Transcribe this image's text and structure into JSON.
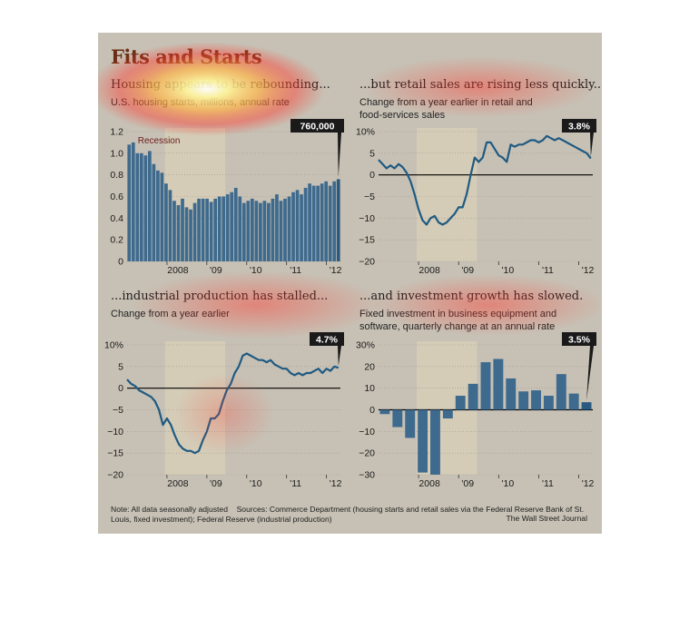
{
  "figure": {
    "title": "Fits and Starts",
    "note": "Note: All data seasonally adjusted",
    "sources": "Sources: Commerce Department (housing starts and retail sales via the Federal Reserve Bank of St. Louis, fixed investment); Federal Reserve (industrial production)",
    "credit": "The Wall Street Journal"
  },
  "colors": {
    "bar": "#3e6a8e",
    "line": "#1f5a82",
    "recession": "#d8cfb8",
    "callout": "#1a1a1a",
    "background": "#c7c1b5"
  },
  "chart_data": [
    {
      "type": "bar",
      "title": "Housing appears to be rebounding...",
      "subtitle": "U.S. housing starts, millions, annual rate",
      "recession_label": "Recession",
      "recession": [
        2007.95,
        2009.46
      ],
      "callout": "760,000",
      "ylim": [
        0,
        1.2
      ],
      "yticks": [
        "0",
        "0.2",
        "0.4",
        "0.6",
        "0.8",
        "1.0",
        "1.2"
      ],
      "xlim": [
        2007.0,
        2012.35
      ],
      "xticks": [
        {
          "label": "2008",
          "x": 2008.0
        },
        {
          "label": "'09",
          "x": 2009.0
        },
        {
          "label": "'10",
          "x": 2010.0
        },
        {
          "label": "'11",
          "x": 2011.0
        },
        {
          "label": "'12",
          "x": 2012.0
        }
      ],
      "values": [
        1.08,
        1.1,
        1.0,
        1.0,
        0.98,
        1.02,
        0.9,
        0.84,
        0.82,
        0.72,
        0.66,
        0.56,
        0.52,
        0.58,
        0.5,
        0.48,
        0.54,
        0.58,
        0.58,
        0.58,
        0.55,
        0.58,
        0.6,
        0.6,
        0.62,
        0.64,
        0.68,
        0.6,
        0.54,
        0.56,
        0.58,
        0.56,
        0.54,
        0.56,
        0.54,
        0.58,
        0.62,
        0.56,
        0.58,
        0.6,
        0.64,
        0.66,
        0.62,
        0.68,
        0.72,
        0.7,
        0.7,
        0.72,
        0.74,
        0.7,
        0.74,
        0.76
      ]
    },
    {
      "type": "line",
      "title": "...but retail sales are rising less quickly...",
      "subtitle": "Change from a year earlier in retail and food-services sales",
      "recession": [
        2007.95,
        2009.46
      ],
      "callout": "3.8%",
      "ylim": [
        -20,
        10
      ],
      "yticks": [
        "−20",
        "−15",
        "−10",
        "−5",
        "0",
        "5",
        "10%"
      ],
      "xlim": [
        2007.0,
        2012.35
      ],
      "xticks": [
        {
          "label": "2008",
          "x": 2008.0
        },
        {
          "label": "'09",
          "x": 2009.0
        },
        {
          "label": "'10",
          "x": 2010.0
        },
        {
          "label": "'11",
          "x": 2011.0
        },
        {
          "label": "'12",
          "x": 2012.0
        }
      ],
      "x": [
        2007.0,
        2007.1,
        2007.2,
        2007.3,
        2007.4,
        2007.5,
        2007.6,
        2007.7,
        2007.8,
        2007.9,
        2008.0,
        2008.1,
        2008.2,
        2008.3,
        2008.4,
        2008.5,
        2008.6,
        2008.7,
        2008.8,
        2008.9,
        2009.0,
        2009.1,
        2009.2,
        2009.3,
        2009.4,
        2009.5,
        2009.6,
        2009.7,
        2009.8,
        2009.9,
        2010.0,
        2010.1,
        2010.2,
        2010.3,
        2010.4,
        2010.5,
        2010.6,
        2010.7,
        2010.8,
        2010.9,
        2011.0,
        2011.1,
        2011.2,
        2011.3,
        2011.4,
        2011.5,
        2011.6,
        2011.7,
        2011.8,
        2011.9,
        2012.0,
        2012.1,
        2012.2,
        2012.3
      ],
      "y": [
        3.5,
        2.5,
        1.5,
        2.2,
        1.5,
        2.5,
        1.8,
        0.5,
        -1.5,
        -4.5,
        -8.0,
        -10.5,
        -11.5,
        -10.0,
        -9.5,
        -11.0,
        -11.5,
        -11.0,
        -10.0,
        -9.0,
        -7.5,
        -7.5,
        -4.5,
        0.0,
        4.0,
        3.0,
        4.0,
        7.5,
        7.5,
        6.0,
        4.5,
        4.0,
        3.0,
        7.0,
        6.5,
        7.0,
        7.0,
        7.5,
        8.0,
        8.0,
        7.5,
        8.0,
        9.0,
        8.5,
        8.0,
        8.5,
        8.0,
        7.5,
        7.0,
        6.5,
        6.0,
        5.5,
        5.0,
        3.8
      ]
    },
    {
      "type": "line",
      "title": "...industrial production has stalled...",
      "subtitle": "Change from a year earlier",
      "recession": [
        2007.95,
        2009.46
      ],
      "callout": "4.7%",
      "ylim": [
        -20,
        10
      ],
      "yticks": [
        "−20",
        "−15",
        "−10",
        "−5",
        "0",
        "5",
        "10%"
      ],
      "xlim": [
        2007.0,
        2012.35
      ],
      "xticks": [
        {
          "label": "2008",
          "x": 2008.0
        },
        {
          "label": "'09",
          "x": 2009.0
        },
        {
          "label": "'10",
          "x": 2010.0
        },
        {
          "label": "'11",
          "x": 2011.0
        },
        {
          "label": "'12",
          "x": 2012.0
        }
      ],
      "x": [
        2007.0,
        2007.1,
        2007.2,
        2007.3,
        2007.4,
        2007.5,
        2007.6,
        2007.7,
        2007.8,
        2007.9,
        2008.0,
        2008.1,
        2008.2,
        2008.3,
        2008.4,
        2008.5,
        2008.6,
        2008.7,
        2008.8,
        2008.9,
        2009.0,
        2009.1,
        2009.2,
        2009.3,
        2009.4,
        2009.5,
        2009.6,
        2009.7,
        2009.8,
        2009.9,
        2010.0,
        2010.1,
        2010.2,
        2010.3,
        2010.4,
        2010.5,
        2010.6,
        2010.7,
        2010.8,
        2010.9,
        2011.0,
        2011.1,
        2011.2,
        2011.3,
        2011.4,
        2011.5,
        2011.6,
        2011.7,
        2011.8,
        2011.9,
        2012.0,
        2012.1,
        2012.2,
        2012.3
      ],
      "y": [
        2.0,
        1.0,
        0.5,
        -0.5,
        -1.0,
        -1.5,
        -2.0,
        -3.0,
        -5.0,
        -8.5,
        -7.0,
        -8.5,
        -11.0,
        -13.0,
        -14.0,
        -14.5,
        -14.5,
        -15.0,
        -14.5,
        -12.0,
        -10.0,
        -7.0,
        -7.0,
        -6.0,
        -3.0,
        -0.5,
        1.0,
        3.5,
        5.0,
        7.5,
        8.0,
        7.5,
        7.0,
        6.5,
        6.5,
        6.0,
        6.5,
        5.5,
        5.0,
        4.5,
        4.5,
        3.5,
        3.0,
        3.5,
        3.0,
        3.5,
        3.5,
        4.0,
        4.5,
        3.5,
        4.5,
        4.0,
        5.0,
        4.7
      ]
    },
    {
      "type": "bar",
      "title": "...and investment growth has slowed.",
      "subtitle": "Fixed investment in business equipment and software, quarterly change at an annual rate",
      "recession": [
        2007.95,
        2009.46
      ],
      "callout": "3.5%",
      "ylim": [
        -30,
        30
      ],
      "yticks": [
        "−30",
        "−20",
        "−10",
        "0",
        "10",
        "20",
        "30%"
      ],
      "xlim": [
        2007.0,
        2012.35
      ],
      "xticks": [
        {
          "label": "2008",
          "x": 2008.0
        },
        {
          "label": "'09",
          "x": 2009.0
        },
        {
          "label": "'10",
          "x": 2010.0
        },
        {
          "label": "'11",
          "x": 2011.0
        },
        {
          "label": "'12",
          "x": 2012.0
        }
      ],
      "values": [
        -2.0,
        -8.0,
        -13.0,
        -29.0,
        -30.0,
        -4.0,
        6.5,
        12.0,
        22.0,
        23.5,
        14.5,
        8.5,
        9.0,
        6.5,
        16.5,
        7.5,
        3.5
      ]
    }
  ]
}
